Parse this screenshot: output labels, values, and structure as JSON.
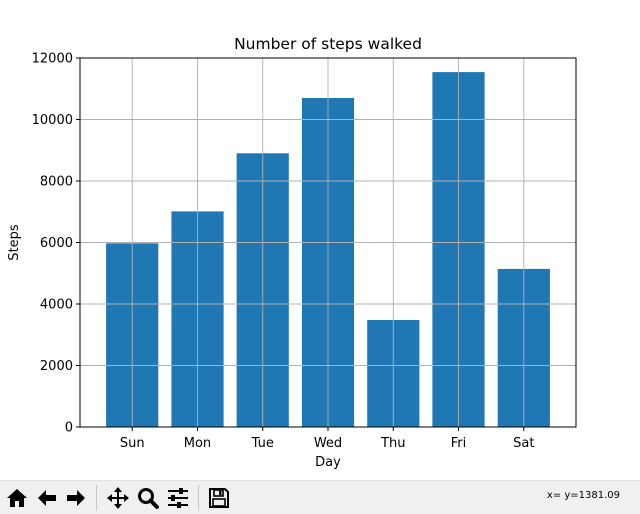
{
  "chart_data": {
    "type": "bar",
    "title": "Number of steps walked",
    "xlabel": "Day",
    "ylabel": "Steps",
    "categories": [
      "Sun",
      "Mon",
      "Tue",
      "Wed",
      "Thu",
      "Fri",
      "Sat"
    ],
    "values": [
      5974,
      7011,
      8900,
      10700,
      3480,
      11540,
      5140
    ],
    "ylim": [
      0,
      12000
    ],
    "yticks": [
      0,
      2000,
      4000,
      6000,
      8000,
      10000,
      12000
    ],
    "grid": true,
    "bar_color": "#1f77b4",
    "grid_color": "#b0b0b0"
  },
  "toolbar": {
    "buttons": [
      {
        "name": "home-icon",
        "icon": "home"
      },
      {
        "name": "back-arrow-icon",
        "icon": "back"
      },
      {
        "name": "forward-arrow-icon",
        "icon": "forward"
      },
      {
        "name": "pan-icon",
        "icon": "pan"
      },
      {
        "name": "zoom-icon",
        "icon": "zoom"
      },
      {
        "name": "configure-subplots-icon",
        "icon": "subplots"
      },
      {
        "name": "save-icon",
        "icon": "save"
      }
    ],
    "coordinates": "x= y=1381.09"
  }
}
